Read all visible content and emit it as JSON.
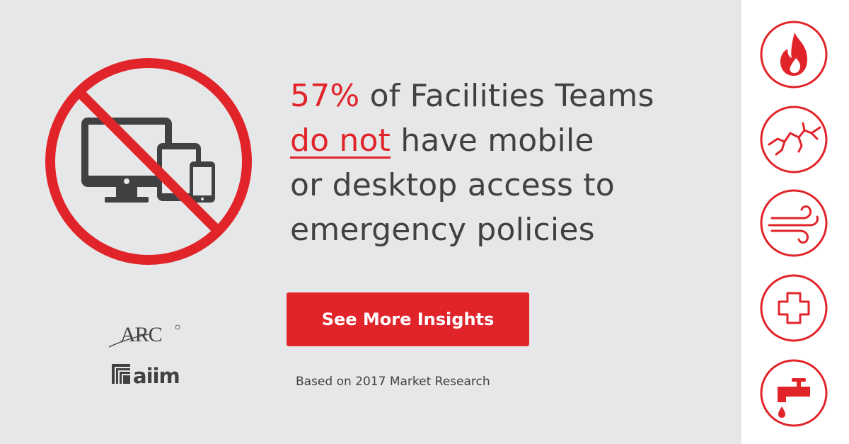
{
  "headline": {
    "stat": "57%",
    "line1_rest": " of Facilities Teams",
    "emphasis": "do not",
    "line2_rest": " have mobile",
    "line3": "or desktop access to",
    "line4": "emergency policies"
  },
  "cta": {
    "label": "See More Insights"
  },
  "source_note": "Based on 2017 Market Research",
  "logos": {
    "arc": "ARC",
    "aiim": "aiim"
  },
  "hazard_icons": [
    "fire-icon",
    "earthquake-icon",
    "wind-icon",
    "medical-cross-icon",
    "water-leak-icon"
  ],
  "colors": {
    "accent": "#e1242a",
    "text": "#414042",
    "background": "#e6e7e8",
    "panel": "#ffffff"
  }
}
